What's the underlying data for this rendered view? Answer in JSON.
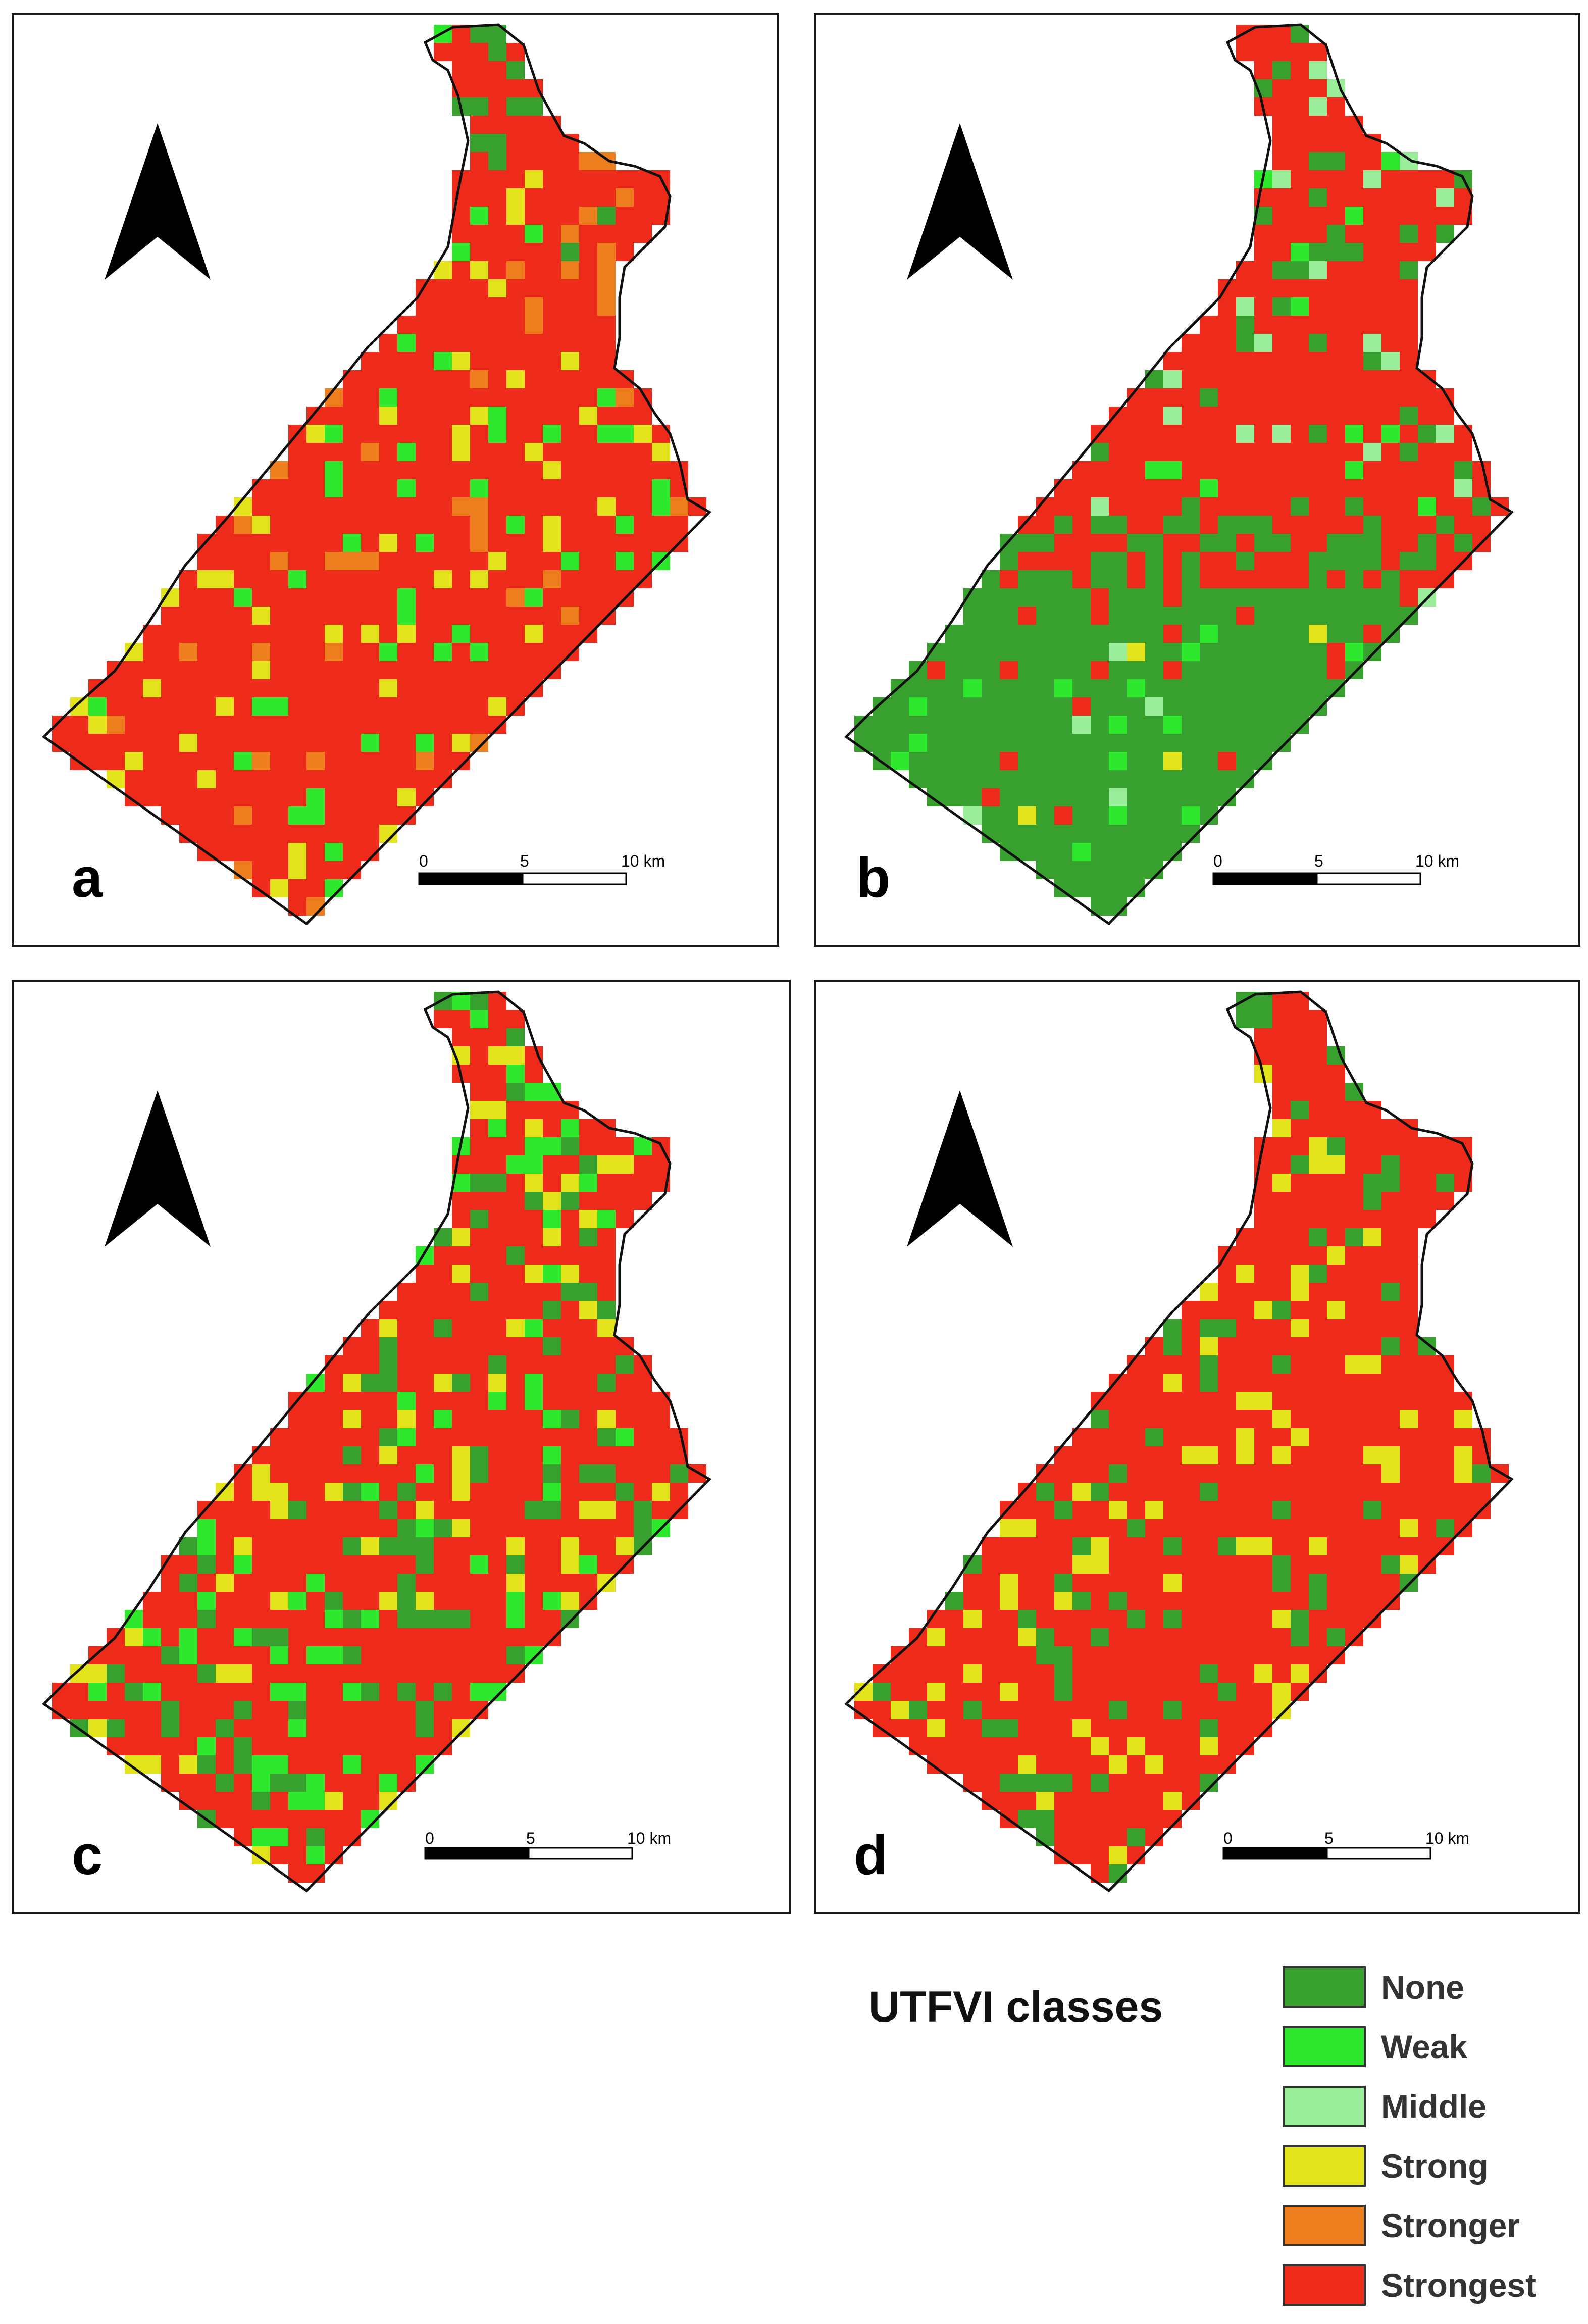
{
  "colors": {
    "none": "#38a02f",
    "weak": "#2ee82e",
    "middle": "#9aee9a",
    "strong": "#e3e31c",
    "stronger": "#ec7e1d",
    "strongest": "#ee2b1b"
  },
  "north_arrow_icon": "north-arrow-icon",
  "panels": [
    {
      "label": "a",
      "scale": {
        "ticks": [
          "0",
          "5",
          "10 km"
        ]
      }
    },
    {
      "label": "b",
      "scale": {
        "ticks": [
          "0",
          "5",
          "10 km"
        ]
      }
    },
    {
      "label": "c",
      "scale": {
        "ticks": [
          "0",
          "5",
          "10 km"
        ]
      }
    },
    {
      "label": "d",
      "scale": {
        "ticks": [
          "0",
          "5",
          "10 km"
        ]
      }
    }
  ],
  "legend": {
    "title": "UTFVI classes",
    "items": [
      {
        "label": "None",
        "color": "#38a02f"
      },
      {
        "label": "Weak",
        "color": "#2ee82e"
      },
      {
        "label": "Middle",
        "color": "#9aee9a"
      },
      {
        "label": "Strong",
        "color": "#e3e31c"
      },
      {
        "label": "Stronger",
        "color": "#ec7e1d"
      },
      {
        "label": "Strongest",
        "color": "#ee2b1b"
      }
    ]
  }
}
